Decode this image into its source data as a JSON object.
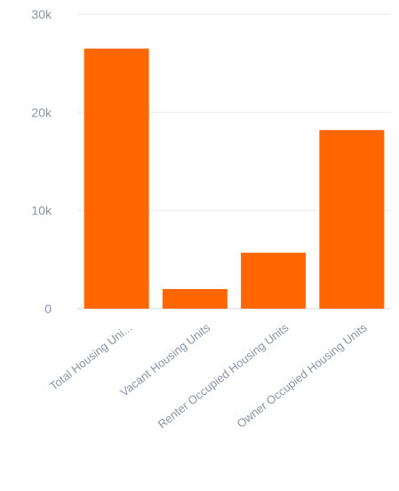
{
  "chart_data": {
    "type": "bar",
    "title": "",
    "xlabel": "",
    "ylabel": "",
    "categories": [
      "Total Housing Uni...",
      "Vacant Housing Units",
      "Renter Occupied Housing Units",
      "Owner Occupied Housing Units"
    ],
    "values": [
      26500,
      2000,
      5700,
      18200
    ],
    "ylim": [
      0,
      30000
    ],
    "yticks": [
      0,
      10000,
      20000,
      30000
    ],
    "ytick_labels": [
      "0",
      "10k",
      "20k",
      "30k"
    ],
    "grid": true,
    "legend": "none",
    "bar_color": "#ff6600"
  }
}
